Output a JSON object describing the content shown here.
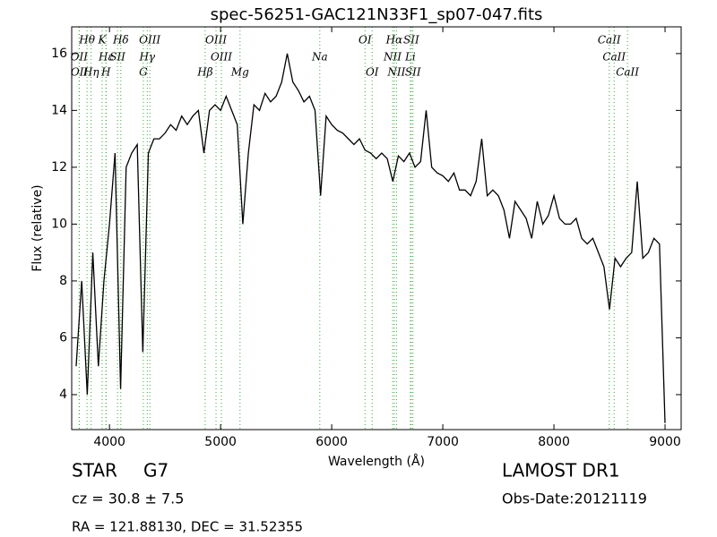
{
  "chart_data": {
    "type": "line",
    "title": "spec-56251-GAC121N33F1_sp07-047.fits",
    "xlabel": "Wavelength (Å)",
    "ylabel": "Flux (relative)",
    "xlim": [
      3660,
      9145
    ],
    "ylim": [
      2.77,
      16.94
    ],
    "xticks": [
      4000,
      5000,
      6000,
      7000,
      8000,
      9000
    ],
    "yticks": [
      4,
      6,
      8,
      10,
      12,
      14,
      16
    ],
    "grid": false,
    "series": [
      {
        "name": "flux",
        "color": "#000000",
        "x": [
          3700,
          3750,
          3800,
          3850,
          3900,
          3950,
          4000,
          4050,
          4100,
          4150,
          4200,
          4250,
          4300,
          4350,
          4400,
          4450,
          4500,
          4550,
          4600,
          4650,
          4700,
          4750,
          4800,
          4850,
          4900,
          4950,
          5000,
          5050,
          5100,
          5150,
          5200,
          5250,
          5300,
          5350,
          5400,
          5450,
          5500,
          5550,
          5600,
          5650,
          5700,
          5750,
          5800,
          5850,
          5900,
          5950,
          6000,
          6050,
          6100,
          6150,
          6200,
          6250,
          6300,
          6350,
          6400,
          6450,
          6500,
          6550,
          6600,
          6650,
          6700,
          6750,
          6800,
          6850,
          6900,
          6950,
          7000,
          7050,
          7100,
          7150,
          7200,
          7250,
          7300,
          7350,
          7400,
          7450,
          7500,
          7550,
          7600,
          7650,
          7700,
          7750,
          7800,
          7850,
          7900,
          7950,
          8000,
          8050,
          8100,
          8150,
          8200,
          8250,
          8300,
          8350,
          8400,
          8450,
          8500,
          8550,
          8600,
          8650,
          8700,
          8750,
          8800,
          8850,
          8900,
          8950,
          9000
        ],
        "values": [
          5,
          8,
          4,
          9,
          5,
          8,
          10,
          12.5,
          4.2,
          12,
          12.5,
          12.8,
          5.5,
          12.5,
          13,
          13,
          13.2,
          13.5,
          13.3,
          13.8,
          13.5,
          13.8,
          14,
          12.5,
          14,
          14.2,
          14,
          14.5,
          14,
          13.5,
          10,
          12.5,
          14.2,
          14,
          14.6,
          14.3,
          14.5,
          15,
          16,
          15,
          14.7,
          14.3,
          14.5,
          14,
          11,
          13.8,
          13.5,
          13.3,
          13.2,
          13,
          12.8,
          13,
          12.6,
          12.5,
          12.3,
          12.5,
          12.3,
          11.5,
          12.4,
          12.2,
          12.5,
          12,
          12.2,
          14,
          12,
          11.8,
          11.7,
          11.5,
          11.8,
          11.2,
          11.2,
          11,
          11.5,
          13,
          11,
          11.2,
          11,
          10.5,
          9.5,
          10.8,
          10.5,
          10.2,
          9.5,
          10.8,
          10,
          10.3,
          11,
          10.2,
          10,
          10,
          10.2,
          9.5,
          9.3,
          9.5,
          9,
          8.5,
          7,
          8.8,
          8.5,
          8.8,
          9,
          11.5,
          8.8,
          9,
          9.5,
          9.3,
          3
        ]
      }
    ],
    "lines": [
      {
        "label": "OII",
        "x": 3727
      },
      {
        "label": "OII",
        "x": 3729
      },
      {
        "label": "Hθ",
        "x": 3798
      },
      {
        "label": "Hη",
        "x": 3835
      },
      {
        "label": "K",
        "x": 3934
      },
      {
        "label": "Hε",
        "x": 3970
      },
      {
        "label": "H",
        "x": 3968
      },
      {
        "label": "SII",
        "x": 4072
      },
      {
        "label": "Hδ",
        "x": 4102
      },
      {
        "label": "Hγ",
        "x": 4340
      },
      {
        "label": "G",
        "x": 4305
      },
      {
        "label": "OIII",
        "x": 4363
      },
      {
        "label": "Hβ",
        "x": 4861
      },
      {
        "label": "OIII",
        "x": 4959
      },
      {
        "label": "OIII",
        "x": 5007
      },
      {
        "label": "Mg",
        "x": 5175
      },
      {
        "label": "Na",
        "x": 5893
      },
      {
        "label": "OI",
        "x": 6300
      },
      {
        "label": "OI",
        "x": 6364
      },
      {
        "label": "NII",
        "x": 6548
      },
      {
        "label": "Hα",
        "x": 6563
      },
      {
        "label": "NII",
        "x": 6583
      },
      {
        "label": "Li",
        "x": 6708
      },
      {
        "label": "SII",
        "x": 6716
      },
      {
        "label": "SII",
        "x": 6731
      },
      {
        "label": "CaII",
        "x": 8498
      },
      {
        "label": "CaII",
        "x": 8542
      },
      {
        "label": "CaII",
        "x": 8662
      }
    ],
    "class": "STAR",
    "subclass": "G7",
    "cz": "cz = 30.8 ± 7.5",
    "coords": "RA = 121.88130, DEC = 31.52355",
    "survey": "LAMOST DR1",
    "obs_date": "Obs-Date:20121119"
  }
}
